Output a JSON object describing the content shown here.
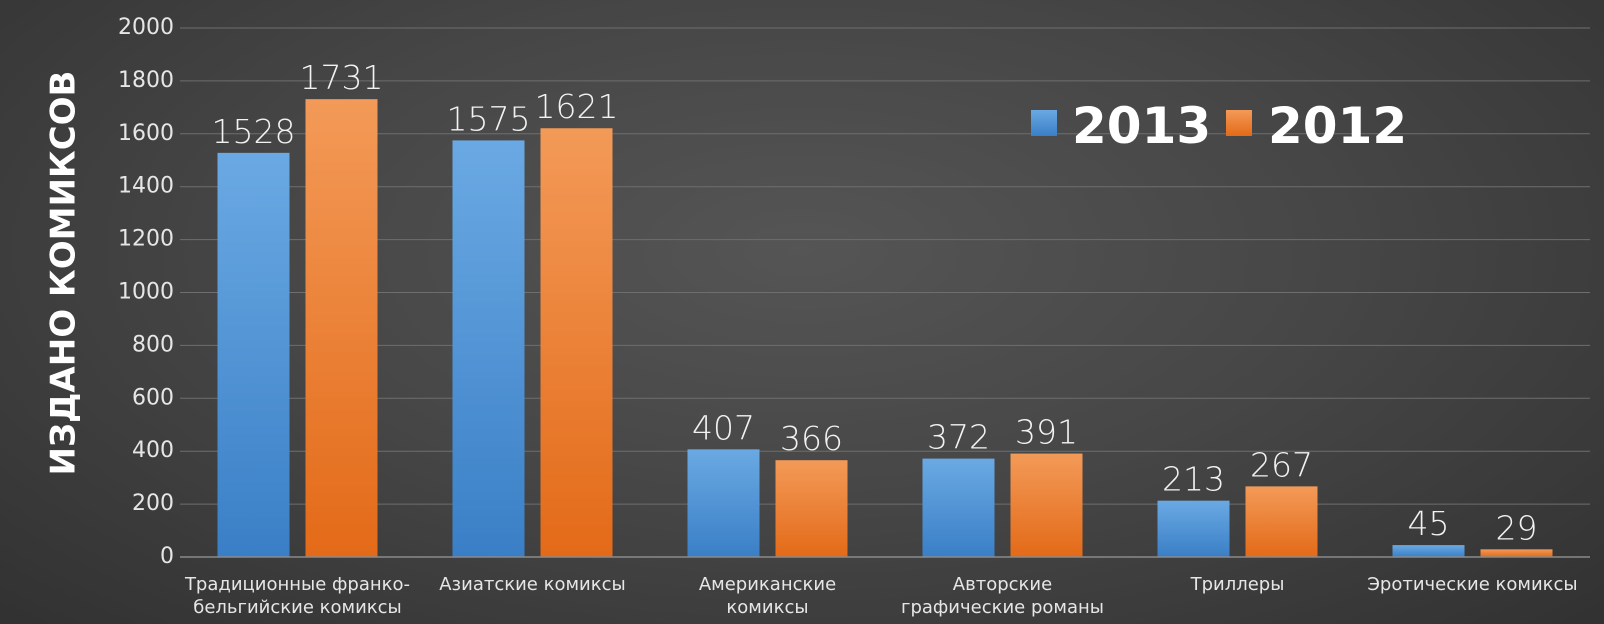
{
  "chart_data": {
    "type": "bar",
    "title": "",
    "xlabel": "",
    "ylabel": "ИЗДАНО КОМИКСОВ",
    "ylim": [
      0,
      2000
    ],
    "yticks": [
      "0",
      "200",
      "400",
      "600",
      "800",
      "1000",
      "1200",
      "1400",
      "1600",
      "1800",
      "2000"
    ],
    "grid": true,
    "legend_position": "top-right",
    "categories": [
      [
        "Традиционные франко-",
        "бельгийские комиксы"
      ],
      [
        "Азиатские комиксы"
      ],
      [
        "Американские",
        "комиксы"
      ],
      [
        "Авторские",
        "графические романы"
      ],
      [
        "Триллеры"
      ],
      [
        "Эротические комиксы"
      ]
    ],
    "series": [
      {
        "name": "2013",
        "color": "#4f93d6",
        "values": [
          1528,
          1575,
          407,
          372,
          213,
          45
        ]
      },
      {
        "name": "2012",
        "color": "#f0802c",
        "values": [
          1731,
          1621,
          366,
          391,
          267,
          29
        ]
      }
    ]
  }
}
